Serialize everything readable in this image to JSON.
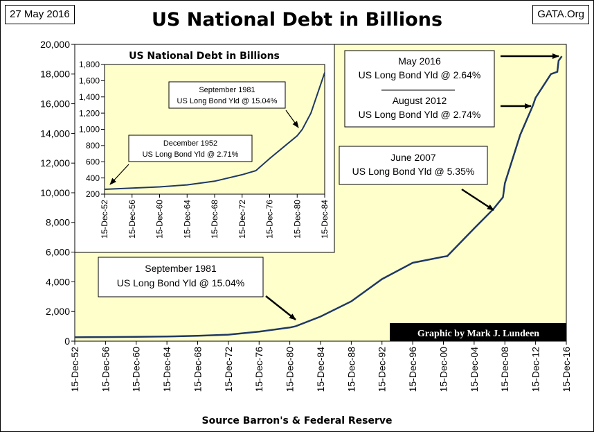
{
  "header": {
    "date": "27 May 2016",
    "site": "GATA.Org",
    "title": "US National Debt in Billions"
  },
  "footer": {
    "source": "Source Barron's & Federal Reserve"
  },
  "credit": "Graphic by Mark J. Lundeen",
  "colors": {
    "plot_bg": "#ffffcc",
    "line": "#1f3864",
    "credit_bg": "#000000",
    "credit_text": "#ffffff"
  },
  "annotations": {
    "may2016_line1": "May 2016",
    "may2016_line2": "US Long Bond Yld @ 2.64%",
    "aug2012_line1": "August 2012",
    "aug2012_line2": "US Long Bond Yld @ 2.74%",
    "jun2007_line1": "June 2007",
    "jun2007_line2": "US Long Bond Yld @ 5.35%",
    "sep1981_line1": "September 1981",
    "sep1981_line2": "US Long Bond Yld @ 15.04%"
  },
  "chart_data": [
    {
      "type": "line",
      "title": "US National Debt in Billions",
      "xlabel": "",
      "ylabel": "",
      "ylim": [
        0,
        20000
      ],
      "xlim": [
        "1952-12-15",
        "2016-12-15"
      ],
      "y_ticks": [
        "0",
        "2,000",
        "4,000",
        "6,000",
        "8,000",
        "10,000",
        "12,000",
        "14,000",
        "16,000",
        "18,000",
        "20,000"
      ],
      "x_ticks": [
        "15-Dec-52",
        "15-Dec-56",
        "15-Dec-60",
        "15-Dec-64",
        "15-Dec-68",
        "15-Dec-72",
        "15-Dec-76",
        "15-Dec-80",
        "15-Dec-84",
        "15-Dec-88",
        "15-Dec-92",
        "15-Dec-96",
        "15-Dec-00",
        "15-Dec-04",
        "15-Dec-08",
        "15-Dec-12",
        "15-Dec-16"
      ],
      "grid": false,
      "series": [
        {
          "x": [
            "1952-12-15",
            "1956-12-15",
            "1960-12-15",
            "1964-12-15",
            "1968-12-15",
            "1972-12-15",
            "1976-12-15",
            "1980-12-15",
            "1981-09-15",
            "1984-12-15",
            "1988-12-15",
            "1992-12-15",
            "1996-12-15",
            "2000-12-15",
            "2001-06-15",
            "2004-12-15",
            "2007-06-15",
            "2008-09-15",
            "2008-12-15",
            "2010-12-15",
            "2012-08-15",
            "2012-12-15",
            "2014-12-15",
            "2015-10-15",
            "2015-12-15",
            "2016-05-15"
          ],
          "y": [
            260,
            275,
            290,
            315,
            360,
            440,
            640,
            920,
            1000,
            1660,
            2680,
            4180,
            5280,
            5690,
            5730,
            7600,
            8900,
            9700,
            10650,
            13900,
            15900,
            16400,
            18000,
            18150,
            18900,
            19200
          ]
        }
      ]
    },
    {
      "type": "line",
      "title": "US National Debt in Billions",
      "xlabel": "",
      "ylabel": "",
      "ylim": [
        200,
        1800
      ],
      "xlim": [
        "1952-12-15",
        "1984-12-15"
      ],
      "y_ticks": [
        "200",
        "400",
        "600",
        "800",
        "1,000",
        "1,200",
        "1,400",
        "1,600",
        "1,800"
      ],
      "x_ticks": [
        "15-Dec-52",
        "15-Dec-56",
        "15-Dec-60",
        "15-Dec-64",
        "15-Dec-68",
        "15-Dec-72",
        "15-Dec-76",
        "15-Dec-80",
        "15-Dec-84"
      ],
      "annotations": [
        {
          "lines": [
            "December 1952",
            "US Long Bond Yld @ 2.71%"
          ],
          "x": "1952-12-15",
          "y": 260
        },
        {
          "lines": [
            "September 1981",
            "US Long Bond Yld @ 15.04%"
          ],
          "x": "1981-09-15",
          "y": 1000
        }
      ],
      "series": [
        {
          "x": [
            "1952-12-15",
            "1956-12-15",
            "1960-12-15",
            "1964-12-15",
            "1968-12-15",
            "1972-12-15",
            "1974-12-15",
            "1976-12-15",
            "1978-12-15",
            "1980-12-15",
            "1981-09-15",
            "1982-12-15",
            "1984-12-15"
          ],
          "y": [
            260,
            275,
            290,
            315,
            360,
            440,
            490,
            640,
            780,
            920,
            1000,
            1200,
            1700
          ]
        }
      ]
    }
  ]
}
